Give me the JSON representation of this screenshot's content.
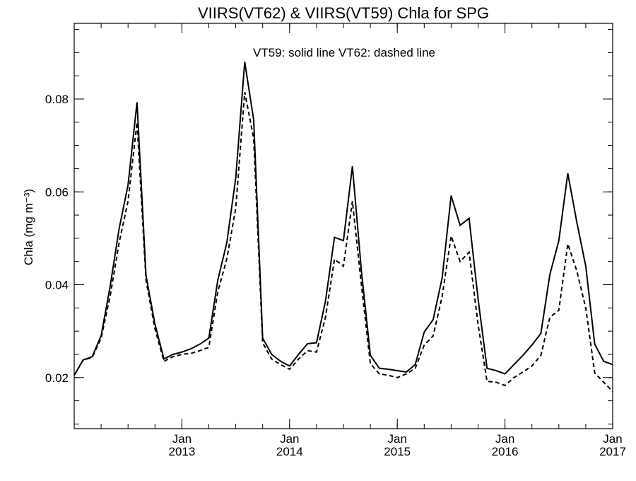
{
  "chart_data": {
    "type": "line",
    "title": "VIIRS(VT62) & VIIRS(VT59)  Chla for SPG",
    "annotation": "VT59: solid line   VT62: dashed line",
    "ylabel": "Chla (mg m⁻³)",
    "xlabel": "",
    "ylim": [
      0.009,
      0.0963
    ],
    "xlim": [
      "2012-01",
      "2017-01"
    ],
    "yticks": [
      0.02,
      0.04,
      0.06,
      0.08
    ],
    "ytick_labels": [
      "0.02",
      "0.04",
      "0.06",
      "0.08"
    ],
    "xticks": [
      "2013-01",
      "2014-01",
      "2015-01",
      "2016-01",
      "2017-01"
    ],
    "xtick_labels": [
      {
        "month": "Jan",
        "year": "2013"
      },
      {
        "month": "Jan",
        "year": "2014"
      },
      {
        "month": "Jan",
        "year": "2015"
      },
      {
        "month": "Jan",
        "year": "2016"
      },
      {
        "month": "Jan",
        "year": "2017"
      }
    ],
    "grid": false,
    "x": [
      "2012-01",
      "2012-02",
      "2012-03",
      "2012-04",
      "2012-05",
      "2012-06",
      "2012-07",
      "2012-08",
      "2012-09",
      "2012-10",
      "2012-11",
      "2012-12",
      "2013-01",
      "2013-02",
      "2013-03",
      "2013-04",
      "2013-05",
      "2013-06",
      "2013-07",
      "2013-08",
      "2013-09",
      "2013-10",
      "2013-11",
      "2013-12",
      "2014-01",
      "2014-02",
      "2014-03",
      "2014-04",
      "2014-05",
      "2014-06",
      "2014-07",
      "2014-08",
      "2014-09",
      "2014-10",
      "2014-11",
      "2014-12",
      "2015-01",
      "2015-02",
      "2015-03",
      "2015-04",
      "2015-05",
      "2015-06",
      "2015-07",
      "2015-08",
      "2015-09",
      "2015-10",
      "2015-11",
      "2015-12",
      "2016-01",
      "2016-02",
      "2016-03",
      "2016-04",
      "2016-05",
      "2016-06",
      "2016-07",
      "2016-08",
      "2016-09",
      "2016-10",
      "2016-11",
      "2016-12",
      "2017-01"
    ],
    "series": [
      {
        "name": "VT59",
        "style": "solid",
        "color": "#000000",
        "values": [
          0.0205,
          0.0238,
          0.0245,
          0.029,
          0.0396,
          0.052,
          0.0615,
          0.0793,
          0.042,
          0.0315,
          0.024,
          0.025,
          0.0255,
          0.0262,
          0.0272,
          0.0285,
          0.041,
          0.049,
          0.063,
          0.088,
          0.0755,
          0.0285,
          0.025,
          0.0235,
          0.0225,
          0.025,
          0.0273,
          0.0275,
          0.0365,
          0.0502,
          0.0495,
          0.0655,
          0.043,
          0.0248,
          0.022,
          0.0218,
          0.0215,
          0.0212,
          0.0228,
          0.0298,
          0.0325,
          0.0415,
          0.0592,
          0.0528,
          0.0543,
          0.037,
          0.022,
          0.0215,
          0.0208,
          0.0228,
          0.0248,
          0.027,
          0.0295,
          0.0422,
          0.0495,
          0.064,
          0.0535,
          0.044,
          0.0272,
          0.0235,
          0.0228
        ]
      },
      {
        "name": "VT62",
        "style": "dashed",
        "color": "#000000",
        "values": [
          0.0205,
          0.0238,
          0.0243,
          0.0285,
          0.0375,
          0.049,
          0.058,
          0.075,
          0.041,
          0.0305,
          0.0235,
          0.0245,
          0.025,
          0.0252,
          0.0258,
          0.0265,
          0.0385,
          0.0455,
          0.0565,
          0.0815,
          0.0715,
          0.0275,
          0.024,
          0.0228,
          0.0218,
          0.024,
          0.0258,
          0.0255,
          0.033,
          0.0455,
          0.044,
          0.058,
          0.04,
          0.023,
          0.0208,
          0.0205,
          0.02,
          0.0208,
          0.022,
          0.027,
          0.029,
          0.0375,
          0.0505,
          0.045,
          0.047,
          0.0315,
          0.0192,
          0.019,
          0.0183,
          0.02,
          0.0212,
          0.0225,
          0.0248,
          0.033,
          0.0345,
          0.0488,
          0.043,
          0.035,
          0.021,
          0.019,
          0.017
        ]
      }
    ]
  }
}
